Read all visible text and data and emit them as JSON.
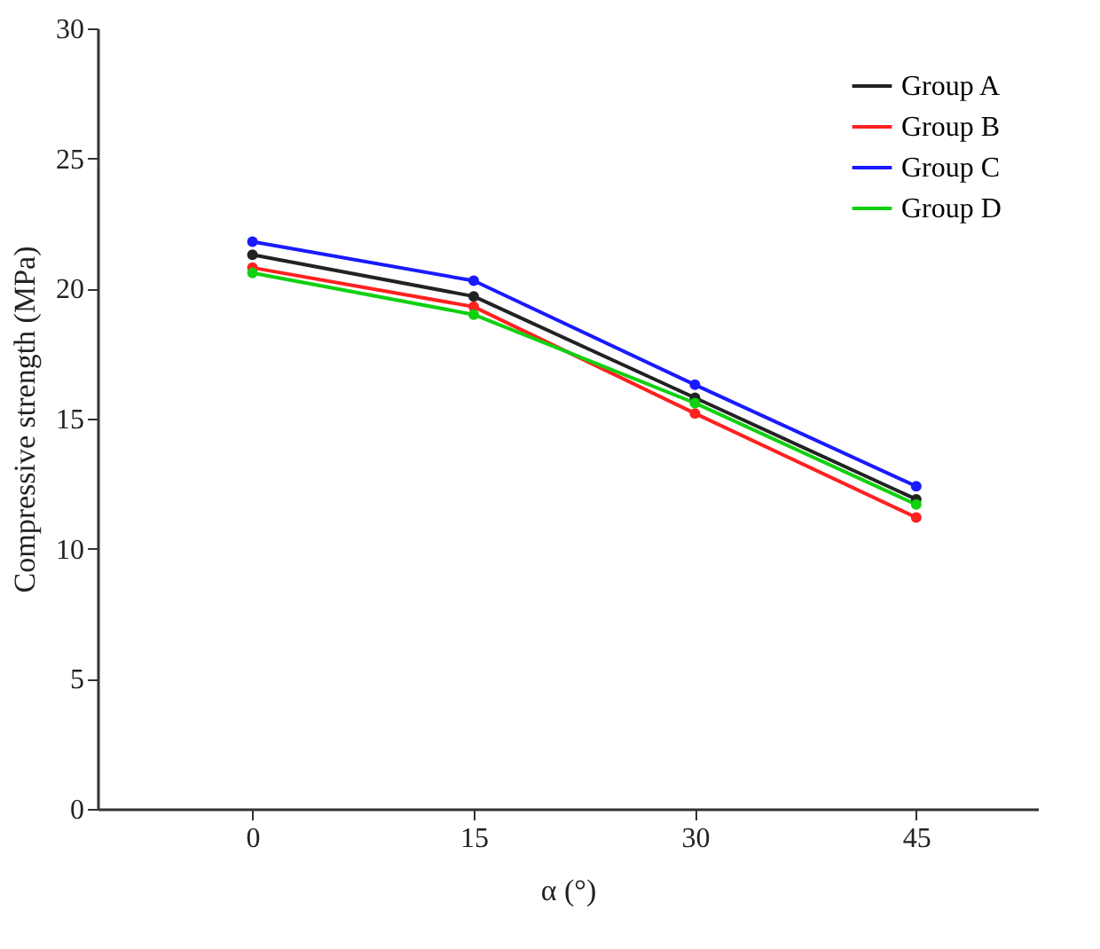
{
  "chart_data": {
    "type": "line",
    "xlabel": "α (°)",
    "ylabel": "Compressive strength (MPa)",
    "categories": [
      "0",
      "15",
      "30",
      "45"
    ],
    "series": [
      {
        "name": "Group A",
        "color": "#222222",
        "values": [
          21.3,
          19.7,
          15.8,
          11.9
        ]
      },
      {
        "name": "Group B",
        "color": "#ff2020",
        "values": [
          20.8,
          19.3,
          15.2,
          11.2
        ]
      },
      {
        "name": "Group C",
        "color": "#1a1aff",
        "values": [
          21.8,
          20.3,
          16.3,
          12.4
        ]
      },
      {
        "name": "Group D",
        "color": "#10d010",
        "values": [
          20.6,
          19.0,
          15.6,
          11.7
        ]
      }
    ],
    "ylim": [
      0,
      30
    ],
    "yticks": [
      0,
      5,
      10,
      15,
      20,
      25,
      30
    ],
    "grid": false,
    "legend": "top right",
    "marker": "circle",
    "line_style": "solid"
  }
}
